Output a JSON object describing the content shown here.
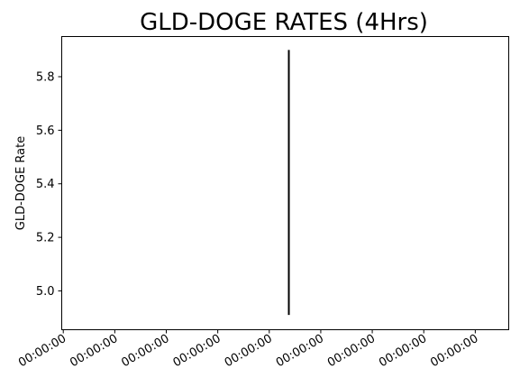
{
  "chart_data": {
    "type": "line",
    "title": "GLD-DOGE RATES (4Hrs)",
    "xlabel": "",
    "ylabel": "GLD-DOGE Rate",
    "ylim": [
      4.855,
      5.95
    ],
    "yticks": [
      5.0,
      5.2,
      5.4,
      5.6,
      5.8
    ],
    "ytick_labels": [
      "5.0",
      "5.2",
      "5.4",
      "5.6",
      "5.8"
    ],
    "xticks": [
      0,
      1,
      2,
      3,
      4,
      5,
      6,
      7,
      8
    ],
    "xtick_labels": [
      "00:00:00",
      "00:00:00",
      "00:00:00",
      "00:00:00",
      "00:00:00",
      "00:00:00",
      "00:00:00",
      "00:00:00",
      "00:00:00"
    ],
    "xlim": [
      -0.03,
      8.65
    ],
    "grid": false,
    "series": [
      {
        "color": "#000000",
        "x": [
          4.38,
          4.38
        ],
        "y": [
          4.91,
          5.9
        ]
      }
    ]
  }
}
